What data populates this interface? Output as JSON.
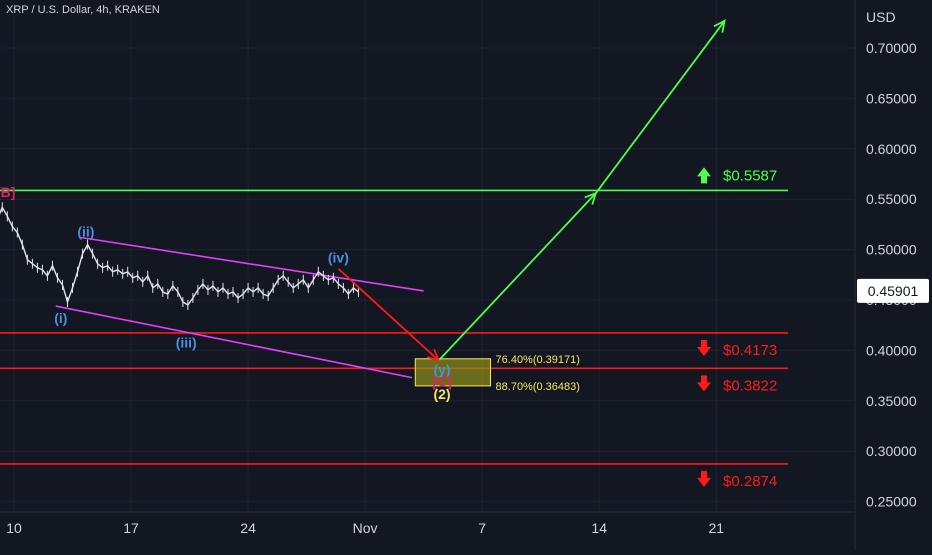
{
  "header": {
    "symbol_title": "XRP / U.S. Dollar, 4h, KRAKEN"
  },
  "colors": {
    "background": "#131722",
    "grid": "#1e2330",
    "axis_text": "#d1d4dc",
    "green_level": "#4cff4c",
    "red_level": "#ff1a1a",
    "channel": "#e040fb",
    "wave_blue": "#4a90e2",
    "wave_pink": "#e91e63",
    "wave_yellow": "#f5e663",
    "target_zone": "#8a8a1a"
  },
  "chart_data": {
    "type": "line",
    "title": "XRP / U.S. Dollar, 4h, KRAKEN",
    "xlabel": "",
    "ylabel": "",
    "y_unit": "USD",
    "ylim": [
      0.24,
      0.745
    ],
    "y_ticks": [
      "0.70000",
      "0.65000",
      "0.60000",
      "0.55000",
      "0.50000",
      "0.45000",
      "0.40000",
      "0.35000",
      "0.30000",
      "0.25000"
    ],
    "x_range_days": [
      9,
      28
    ],
    "x_ticks": [
      {
        "day": 10,
        "label": "10"
      },
      {
        "day": 17,
        "label": "17"
      },
      {
        "day": 24,
        "label": "24"
      },
      {
        "day": 31,
        "label": "Nov"
      },
      {
        "day": 38,
        "label": "7"
      },
      {
        "day": 45,
        "label": "14"
      },
      {
        "day": 52,
        "label": "21"
      }
    ],
    "current_price": "0.45901",
    "grid": true,
    "price_series": [
      [
        9.0,
        0.53
      ],
      [
        9.3,
        0.542
      ],
      [
        9.6,
        0.533
      ],
      [
        9.9,
        0.523
      ],
      [
        10.2,
        0.517
      ],
      [
        10.5,
        0.505
      ],
      [
        10.8,
        0.49
      ],
      [
        11.1,
        0.486
      ],
      [
        11.4,
        0.482
      ],
      [
        11.7,
        0.48
      ],
      [
        12.0,
        0.474
      ],
      [
        12.3,
        0.484
      ],
      [
        12.6,
        0.472
      ],
      [
        12.9,
        0.465
      ],
      [
        13.2,
        0.448
      ],
      [
        13.5,
        0.462
      ],
      [
        13.8,
        0.478
      ],
      [
        14.1,
        0.496
      ],
      [
        14.4,
        0.505
      ],
      [
        14.7,
        0.496
      ],
      [
        15.0,
        0.486
      ],
      [
        15.3,
        0.482
      ],
      [
        15.6,
        0.484
      ],
      [
        15.9,
        0.478
      ],
      [
        16.2,
        0.48
      ],
      [
        16.5,
        0.476
      ],
      [
        16.8,
        0.478
      ],
      [
        17.1,
        0.472
      ],
      [
        17.4,
        0.474
      ],
      [
        17.7,
        0.468
      ],
      [
        18.0,
        0.474
      ],
      [
        18.3,
        0.462
      ],
      [
        18.6,
        0.466
      ],
      [
        18.9,
        0.458
      ],
      [
        19.2,
        0.456
      ],
      [
        19.5,
        0.464
      ],
      [
        19.8,
        0.458
      ],
      [
        20.1,
        0.448
      ],
      [
        20.4,
        0.445
      ],
      [
        20.7,
        0.452
      ],
      [
        21.0,
        0.46
      ],
      [
        21.3,
        0.466
      ],
      [
        21.6,
        0.46
      ],
      [
        21.9,
        0.464
      ],
      [
        22.2,
        0.458
      ],
      [
        22.5,
        0.462
      ],
      [
        22.8,
        0.456
      ],
      [
        23.1,
        0.458
      ],
      [
        23.4,
        0.452
      ],
      [
        23.7,
        0.456
      ],
      [
        24.0,
        0.462
      ],
      [
        24.3,
        0.458
      ],
      [
        24.6,
        0.462
      ],
      [
        24.9,
        0.456
      ],
      [
        25.2,
        0.454
      ],
      [
        25.5,
        0.462
      ],
      [
        25.8,
        0.47
      ],
      [
        26.1,
        0.474
      ],
      [
        26.4,
        0.468
      ],
      [
        26.7,
        0.462
      ],
      [
        27.0,
        0.466
      ],
      [
        27.3,
        0.47
      ],
      [
        27.6,
        0.462
      ],
      [
        27.9,
        0.47
      ],
      [
        28.2,
        0.478
      ],
      [
        28.5,
        0.474
      ],
      [
        28.8,
        0.47
      ],
      [
        29.1,
        0.472
      ],
      [
        29.4,
        0.466
      ],
      [
        29.7,
        0.462
      ],
      [
        30.0,
        0.456
      ],
      [
        30.3,
        0.462
      ],
      [
        30.6,
        0.458
      ]
    ],
    "horizontal_levels": [
      {
        "price": 0.5587,
        "label": "$0.5587",
        "color": "#4cff4c",
        "arrow": "up"
      },
      {
        "price": 0.4173,
        "label": "$0.4173",
        "color": "#ff1a1a",
        "arrow": "down"
      },
      {
        "price": 0.3822,
        "label": "$0.3822",
        "color": "#ff1a1a",
        "arrow": "down"
      },
      {
        "price": 0.2874,
        "label": "$0.2874",
        "color": "#ff1a1a",
        "arrow": "down"
      }
    ],
    "channel_lines": [
      {
        "from": [
          14.0,
          0.512
        ],
        "to": [
          34.5,
          0.459
        ]
      },
      {
        "from": [
          12.5,
          0.444
        ],
        "to": [
          33.8,
          0.373
        ]
      }
    ],
    "projection_lines": [
      {
        "from": [
          29.4,
          0.481
        ],
        "to": [
          35.4,
          0.39
        ],
        "color": "#ff1a1a"
      },
      {
        "from": [
          35.4,
          0.39
        ],
        "to": [
          44.8,
          0.556
        ],
        "color": "#4cff4c"
      },
      {
        "from": [
          44.8,
          0.556
        ],
        "to": [
          52.5,
          0.727
        ],
        "color": "#4cff4c"
      }
    ],
    "target_zone": {
      "x_from": 34.0,
      "x_to": 38.5,
      "y_top": 0.3917,
      "y_bottom": 0.3648
    },
    "fib_labels": [
      {
        "text": "76.40%(0.39171)",
        "x": 38.8,
        "y": 0.3917
      },
      {
        "text": "88.70%(0.36483)",
        "x": 38.8,
        "y": 0.3648
      }
    ],
    "wave_labels": [
      {
        "text": "[B]",
        "x": 9.5,
        "y": 0.552,
        "color": "#e91e63"
      },
      {
        "text": "(i)",
        "x": 12.8,
        "y": 0.427,
        "color": "#4a90e2"
      },
      {
        "text": "(ii)",
        "x": 14.3,
        "y": 0.513,
        "color": "#4a90e2"
      },
      {
        "text": "(iii)",
        "x": 20.3,
        "y": 0.403,
        "color": "#4a90e2"
      },
      {
        "text": "(iv)",
        "x": 29.4,
        "y": 0.487,
        "color": "#4a90e2"
      },
      {
        "text": "(y)",
        "x": 35.6,
        "y": 0.376,
        "color": "#4a90e2"
      },
      {
        "text": "[C]",
        "x": 35.6,
        "y": 0.364,
        "color": "#e91e63"
      },
      {
        "text": "(2)",
        "x": 35.6,
        "y": 0.352,
        "color": "#f5e663"
      }
    ]
  }
}
